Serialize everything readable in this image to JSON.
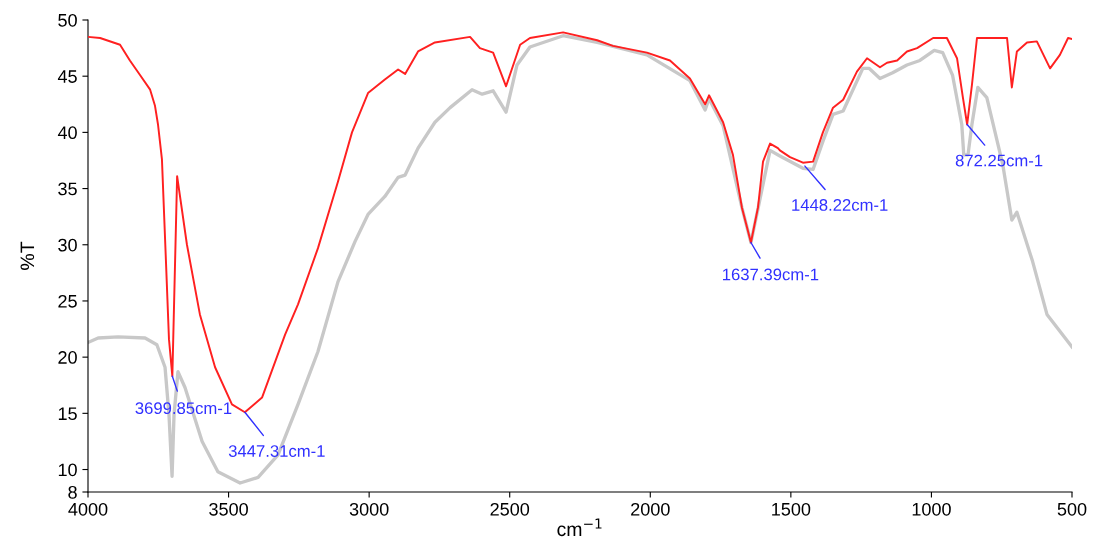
{
  "chart_data": {
    "type": "line",
    "xlabel": "cm$^{−1}$",
    "ylabel": "%T",
    "xlim": [
      4000,
      500
    ],
    "ylim": [
      8,
      50
    ],
    "xticks": [
      4000,
      3500,
      3000,
      2500,
      2000,
      1500,
      1000,
      500
    ],
    "yticks": [
      8,
      10,
      15,
      20,
      25,
      30,
      35,
      40,
      45,
      50
    ],
    "grid": false,
    "legend": false,
    "marker": "none",
    "line_style": "solid",
    "series": [
      {
        "color": "#c8c8c8",
        "x": [
          4000,
          3964,
          3893,
          3797,
          3755,
          3726,
          3712,
          3701,
          3694,
          3680,
          3655,
          3594,
          3538,
          3459,
          3395,
          3324,
          3253,
          3182,
          3111,
          3050,
          3004,
          2944,
          2897,
          2872,
          2826,
          2766,
          2712,
          2634,
          2598,
          2559,
          2513,
          2474,
          2428,
          2310,
          2189,
          2012,
          1859,
          1805,
          1791,
          1741,
          1674,
          1642,
          1617,
          1574,
          1539,
          1457,
          1421,
          1386,
          1350,
          1314,
          1244,
          1222,
          1183,
          1138,
          1087,
          1041,
          990,
          960,
          925,
          892,
          885,
          870,
          856,
          835,
          803,
          746,
          714,
          696,
          640,
          589,
          543,
          500
        ],
        "values": [
          21.3,
          21.7,
          21.8,
          21.7,
          21.1,
          19.1,
          14.9,
          9.4,
          14.9,
          18.7,
          17.3,
          12.5,
          9.8,
          8.8,
          9.3,
          11.3,
          15.8,
          20.5,
          26.7,
          30.3,
          32.7,
          34.3,
          36.0,
          36.2,
          38.6,
          40.9,
          42.2,
          43.8,
          43.4,
          43.7,
          41.8,
          46.0,
          47.6,
          48.6,
          48.0,
          46.9,
          44.6,
          42.0,
          43.0,
          40.6,
          33.3,
          30.2,
          33.2,
          38.4,
          37.9,
          36.8,
          36.7,
          39.2,
          41.6,
          41.9,
          45.7,
          45.7,
          44.8,
          45.3,
          46.0,
          46.4,
          47.3,
          47.1,
          45.1,
          40.7,
          38.0,
          38.0,
          40.7,
          44.0,
          43.1,
          37.1,
          32.2,
          32.9,
          28.5,
          23.8,
          22.3,
          20.9
        ]
      },
      {
        "color": "#ff2020",
        "x": [
          4000,
          3957,
          3886,
          3851,
          3815,
          3779,
          3762,
          3751,
          3737,
          3723,
          3712,
          3700,
          3683,
          3648,
          3602,
          3548,
          3488,
          3442,
          3381,
          3299,
          3253,
          3182,
          3111,
          3061,
          3004,
          2944,
          2897,
          2872,
          2826,
          2766,
          2641,
          2606,
          2559,
          2513,
          2463,
          2428,
          2310,
          2189,
          2133,
          2012,
          1930,
          1859,
          1805,
          1791,
          1741,
          1706,
          1674,
          1642,
          1617,
          1599,
          1574,
          1546,
          1539,
          1503,
          1457,
          1421,
          1386,
          1350,
          1314,
          1265,
          1229,
          1183,
          1158,
          1122,
          1087,
          1051,
          994,
          945,
          909,
          888,
          873,
          856,
          838,
          767,
          731,
          714,
          696,
          660,
          625,
          578,
          543,
          514,
          500
        ],
        "values": [
          48.5,
          48.4,
          47.8,
          46.4,
          45.1,
          43.8,
          42.4,
          40.7,
          37.6,
          28.7,
          21.6,
          18.3,
          36.1,
          30.0,
          23.8,
          19.1,
          15.8,
          15.1,
          16.4,
          22.0,
          24.7,
          29.7,
          35.6,
          40.0,
          43.5,
          44.7,
          45.6,
          45.2,
          47.2,
          48.0,
          48.5,
          47.5,
          47.1,
          44.1,
          47.8,
          48.4,
          48.9,
          48.2,
          47.7,
          47.1,
          46.4,
          44.8,
          42.5,
          43.3,
          40.9,
          38.0,
          33.3,
          30.2,
          33.3,
          37.4,
          39.0,
          38.6,
          38.4,
          37.8,
          37.3,
          37.4,
          40.0,
          42.2,
          42.9,
          45.4,
          46.6,
          45.8,
          46.2,
          46.4,
          47.2,
          47.5,
          48.4,
          48.4,
          46.6,
          43.1,
          40.7,
          44.2,
          48.4,
          48.4,
          48.4,
          44.0,
          47.2,
          48.0,
          48.1,
          45.7,
          46.9,
          48.4,
          48.3
        ]
      }
    ],
    "annotations": [
      {
        "text": "3699.85cm-1",
        "x": 3700,
        "y": 18.3
      },
      {
        "text": "3447.31cm-1",
        "x": 3442,
        "y": 15.1
      },
      {
        "text": "1637.39cm-1",
        "x": 1642,
        "y": 30.2
      },
      {
        "text": "1448.22cm-1",
        "x": 1450,
        "y": 37.0
      },
      {
        "text": "872.25cm-1",
        "x": 873,
        "y": 40.7
      }
    ]
  }
}
